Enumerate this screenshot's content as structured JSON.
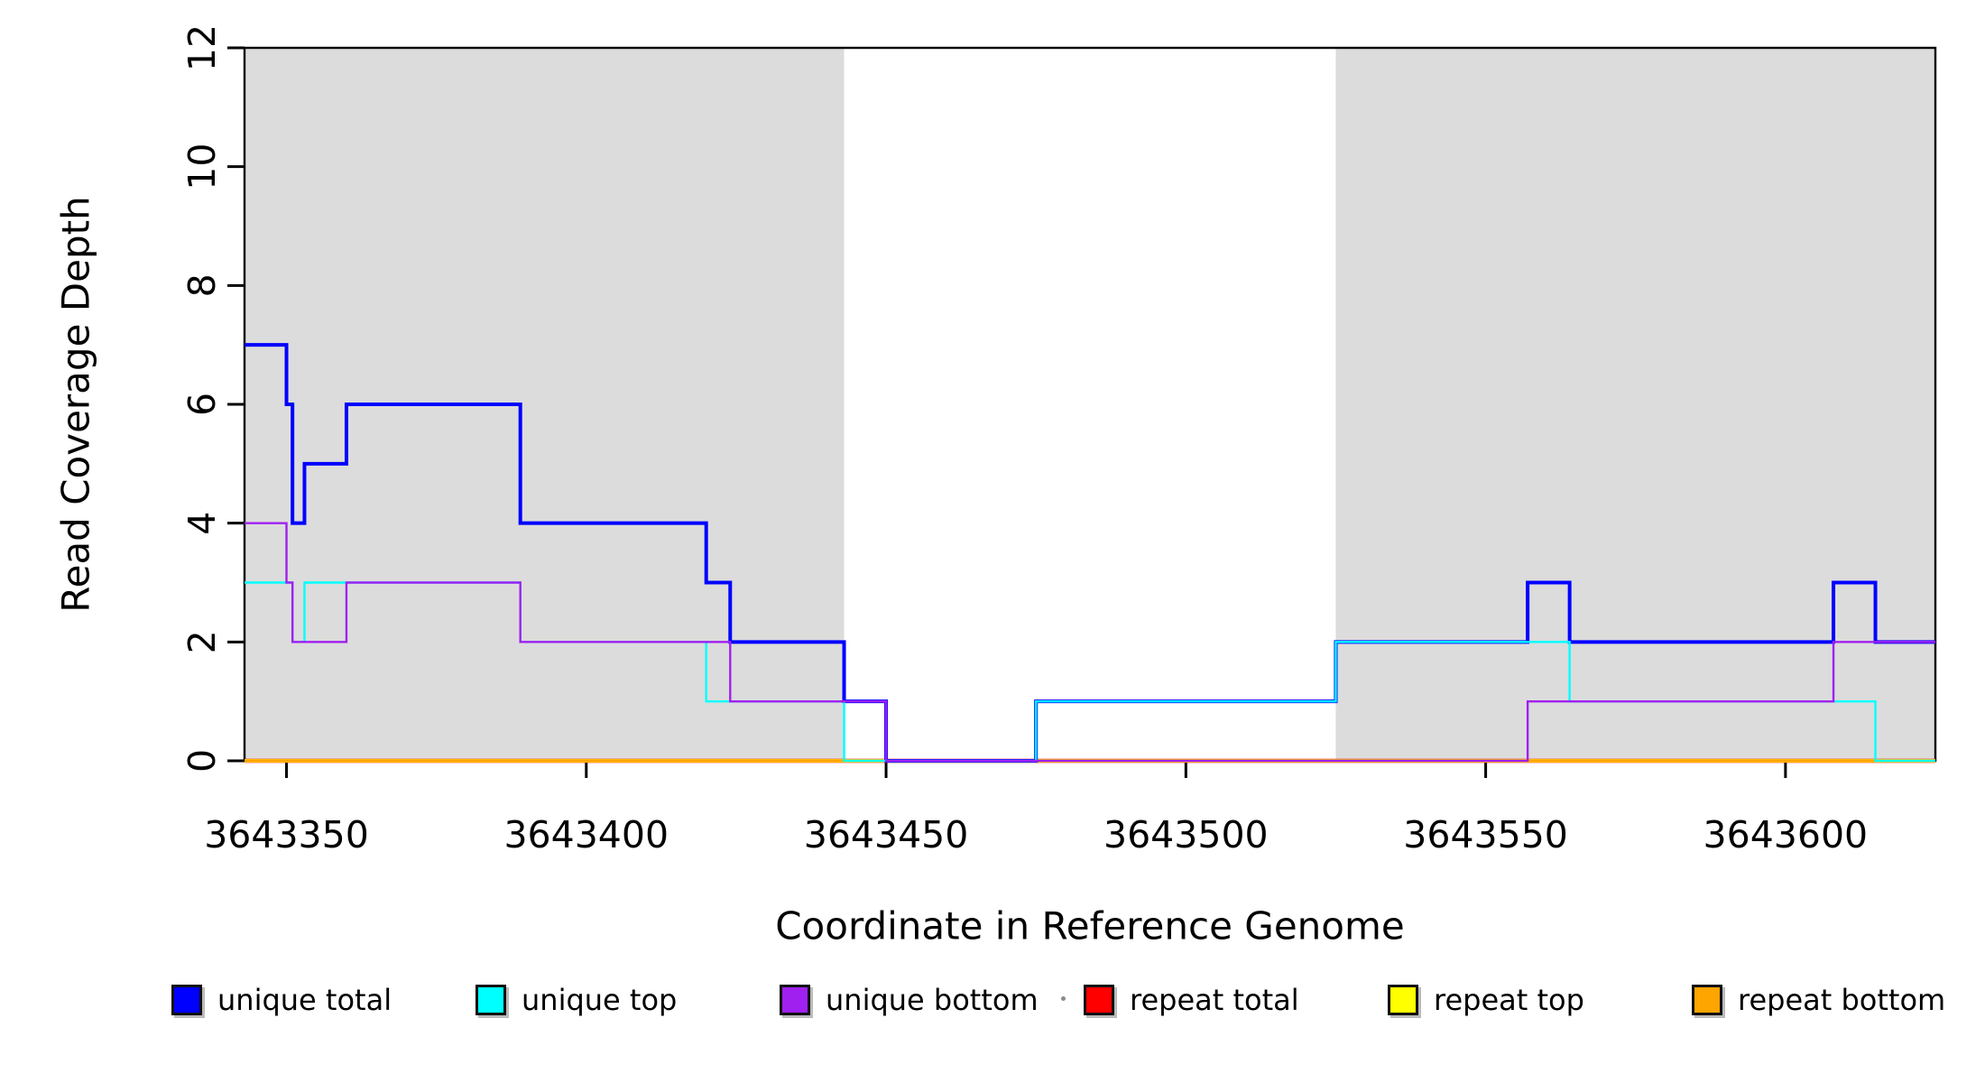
{
  "figure": {
    "shaded_band_color": "#dcdcdc",
    "plot_background": "#ffffff",
    "box_color": "#000000"
  },
  "y_axis": {
    "title": "Read Coverage Depth",
    "tick_labels": [
      "0",
      "2",
      "4",
      "6",
      "8",
      "10",
      "12"
    ],
    "tick_values": [
      0,
      2,
      4,
      6,
      8,
      10,
      12
    ]
  },
  "x_axis": {
    "title": "Coordinate in Reference Genome",
    "tick_labels": [
      "3643350",
      "3643400",
      "3643450",
      "3643500",
      "3643550",
      "3643600"
    ],
    "tick_values": [
      3643350,
      3643400,
      3643450,
      3643500,
      3643550,
      3643600
    ]
  },
  "chart_data": {
    "type": "line",
    "step": true,
    "title": "",
    "xlabel": "Coordinate in Reference Genome",
    "ylabel": "Read Coverage Depth",
    "xlim": [
      3643343,
      3643625
    ],
    "ylim": [
      0,
      12
    ],
    "grid": false,
    "legend_position": "bottom",
    "x_breakpoints": [
      3643343,
      3643350,
      3643351,
      3643353,
      3643360,
      3643389,
      3643420,
      3643424,
      3643443,
      3643450,
      3643475,
      3643525,
      3643557,
      3643564,
      3643608,
      3643615,
      3643625
    ],
    "series": [
      {
        "name": "repeat total",
        "color": "#ff0000",
        "stroke_width": 4.6,
        "values": [
          0,
          0,
          0,
          0,
          0,
          0,
          0,
          0,
          0,
          0,
          0,
          0,
          0,
          0,
          0,
          0
        ]
      },
      {
        "name": "repeat top",
        "color": "#ffff00",
        "stroke_width": 4.0,
        "values": [
          0,
          0,
          0,
          0,
          0,
          0,
          0,
          0,
          0,
          0,
          0,
          0,
          0,
          0,
          0,
          0
        ]
      },
      {
        "name": "repeat bottom",
        "color": "#ffa500",
        "stroke_width": 3.4,
        "values": [
          0,
          0,
          0,
          0,
          0,
          0,
          0,
          0,
          0,
          0,
          0,
          0,
          0,
          0,
          0,
          0
        ]
      },
      {
        "name": "unique total",
        "color": "#0000ff",
        "stroke_width": 4.0,
        "values": [
          7,
          6,
          4,
          5,
          6,
          4,
          3,
          2,
          1,
          0,
          1,
          2,
          3,
          2,
          3,
          2
        ]
      },
      {
        "name": "unique top",
        "color": "#00ffff",
        "stroke_width": 2.4,
        "values": [
          3,
          3,
          2,
          3,
          3,
          2,
          1,
          1,
          0,
          0,
          1,
          2,
          2,
          1,
          1,
          0
        ]
      },
      {
        "name": "unique bottom",
        "color": "#a020f0",
        "stroke_width": 2.4,
        "values": [
          4,
          3,
          2,
          2,
          3,
          2,
          2,
          1,
          1,
          0,
          0,
          0,
          1,
          1,
          2,
          2
        ]
      }
    ],
    "shaded_regions": [
      {
        "from": 3643343,
        "to": 3643443
      },
      {
        "from": 3643525,
        "to": 3643625
      }
    ]
  },
  "legend": {
    "items": [
      {
        "label": "unique total",
        "color": "#0000ff"
      },
      {
        "label": "unique top",
        "color": "#00ffff"
      },
      {
        "label": "unique bottom",
        "color": "#a020f0"
      },
      {
        "label": "repeat total",
        "color": "#ff0000"
      },
      {
        "label": "repeat top",
        "color": "#ffff00"
      },
      {
        "label": "repeat bottom",
        "color": "#ffa500"
      }
    ]
  }
}
